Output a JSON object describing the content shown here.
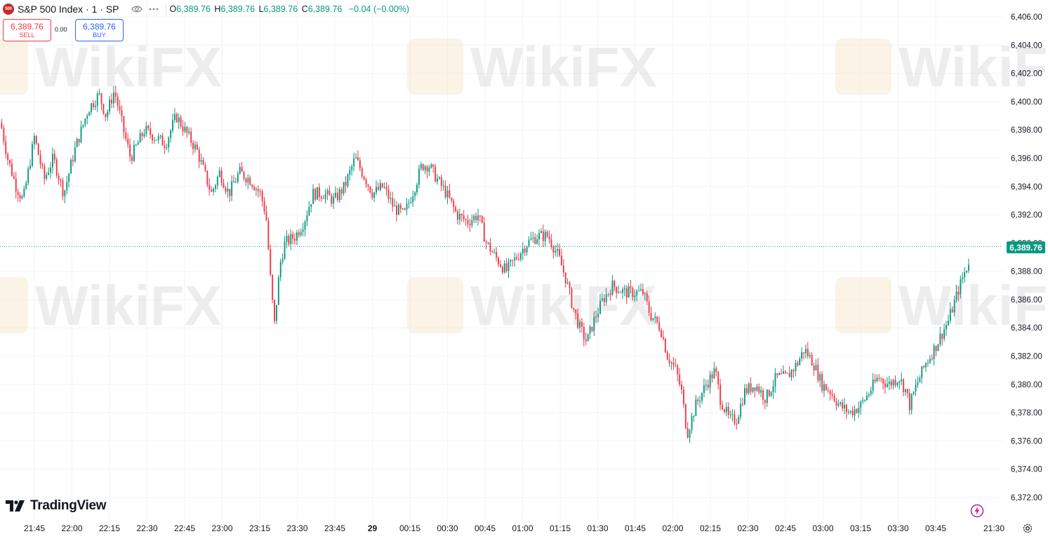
{
  "symbol": {
    "logo_text": "500",
    "title": "S&P 500 Index · 1 · SP"
  },
  "ohlc": {
    "open_label": "O",
    "open": "6,389.76",
    "high_label": "H",
    "high": "6,389.76",
    "low_label": "L",
    "low": "6,389.76",
    "close_label": "C",
    "close": "6,389.76",
    "change": "−0.04 (−0.00%)"
  },
  "trade": {
    "sell_price": "6,389.76",
    "sell_label": "SELL",
    "spread": "0.00",
    "buy_price": "6,389.76",
    "buy_label": "BUY"
  },
  "brand": {
    "name": "TradingView"
  },
  "watermark": {
    "text": "WikiFX"
  },
  "last_price": "6,389.76",
  "colors": {
    "up": "#089981",
    "down": "#f23645",
    "grid": "#f0f3fa",
    "text": "#131722"
  },
  "icons": [
    "symbol-logo-icon",
    "eye-icon",
    "more-dots-icon",
    "flash-icon",
    "gear-icon",
    "tradingview-logo-icon"
  ],
  "chart_data": {
    "type": "candlestick",
    "interval": "1 minute",
    "yaxis_ticks": [
      6372,
      6374,
      6376,
      6378,
      6380,
      6382,
      6384,
      6386,
      6388,
      6390,
      6392,
      6394,
      6396,
      6398,
      6400,
      6402,
      6404,
      6406
    ],
    "yaxis_tick_labels": [
      "6,372.00",
      "6,374.00",
      "6,376.00",
      "6,378.00",
      "6,380.00",
      "6,382.00",
      "6,384.00",
      "6,386.00",
      "6,388.00",
      "6,390.00",
      "6,392.00",
      "6,394.00",
      "6,396.00",
      "6,398.00",
      "6,400.00",
      "6,402.00",
      "6,404.00",
      "6,406.00"
    ],
    "ylim": [
      6371,
      6407
    ],
    "xaxis_tick_labels": [
      "21:45",
      "22:00",
      "22:15",
      "22:30",
      "22:45",
      "23:00",
      "23:15",
      "23:30",
      "23:45",
      "29",
      "00:15",
      "00:30",
      "00:45",
      "01:00",
      "01:15",
      "01:30",
      "01:45",
      "02:00",
      "02:15",
      "02:30",
      "02:45",
      "03:00",
      "03:15",
      "03:30",
      "03:45",
      "21:30"
    ],
    "last_price": 6389.76,
    "price_path": [
      [
        0,
        6398.5
      ],
      [
        10,
        6396.0
      ],
      [
        22,
        6394.0
      ],
      [
        32,
        6393.0
      ],
      [
        48,
        6397.5
      ],
      [
        62,
        6394.5
      ],
      [
        75,
        6396.0
      ],
      [
        90,
        6393.5
      ],
      [
        105,
        6396.5
      ],
      [
        125,
        6399.5
      ],
      [
        140,
        6400.5
      ],
      [
        150,
        6399.0
      ],
      [
        162,
        6400.8
      ],
      [
        175,
        6398.0
      ],
      [
        185,
        6396.0
      ],
      [
        205,
        6398.0
      ],
      [
        220,
        6397.5
      ],
      [
        235,
        6397.0
      ],
      [
        250,
        6399.0
      ],
      [
        262,
        6398.0
      ],
      [
        280,
        6396.5
      ],
      [
        290,
        6395.0
      ],
      [
        300,
        6393.5
      ],
      [
        312,
        6395.0
      ],
      [
        325,
        6393.5
      ],
      [
        340,
        6395.0
      ],
      [
        355,
        6394.5
      ],
      [
        370,
        6393.5
      ],
      [
        378,
        6392.0
      ],
      [
        385,
        6387.0
      ],
      [
        390,
        6384.2
      ],
      [
        398,
        6388.5
      ],
      [
        405,
        6390.0
      ],
      [
        420,
        6390.5
      ],
      [
        432,
        6391.5
      ],
      [
        445,
        6393.5
      ],
      [
        460,
        6393.5
      ],
      [
        475,
        6393.0
      ],
      [
        490,
        6394.0
      ],
      [
        505,
        6396.0
      ],
      [
        515,
        6395.0
      ],
      [
        530,
        6393.5
      ],
      [
        545,
        6394.0
      ],
      [
        560,
        6392.5
      ],
      [
        575,
        6392.0
      ],
      [
        590,
        6394.0
      ],
      [
        600,
        6395.5
      ],
      [
        610,
        6395.5
      ],
      [
        622,
        6394.5
      ],
      [
        635,
        6393.5
      ],
      [
        650,
        6392.0
      ],
      [
        665,
        6391.5
      ],
      [
        680,
        6392.0
      ],
      [
        692,
        6390.0
      ],
      [
        705,
        6389.0
      ],
      [
        720,
        6388.0
      ],
      [
        735,
        6389.0
      ],
      [
        750,
        6390.0
      ],
      [
        765,
        6390.5
      ],
      [
        780,
        6390.5
      ],
      [
        795,
        6389.0
      ],
      [
        805,
        6387.5
      ],
      [
        815,
        6385.5
      ],
      [
        825,
        6384.0
      ],
      [
        835,
        6383.0
      ],
      [
        845,
        6384.5
      ],
      [
        858,
        6386.0
      ],
      [
        872,
        6387.0
      ],
      [
        888,
        6386.5
      ],
      [
        902,
        6386.5
      ],
      [
        915,
        6386.5
      ],
      [
        925,
        6385.0
      ],
      [
        940,
        6384.0
      ],
      [
        950,
        6382.0
      ],
      [
        962,
        6381.0
      ],
      [
        970,
        6379.5
      ],
      [
        978,
        6376.5
      ],
      [
        990,
        6378.5
      ],
      [
        1005,
        6380.0
      ],
      [
        1018,
        6381.0
      ],
      [
        1025,
        6379.0
      ],
      [
        1038,
        6377.5
      ],
      [
        1048,
        6377.5
      ],
      [
        1060,
        6379.5
      ],
      [
        1075,
        6380.0
      ],
      [
        1090,
        6379.0
      ],
      [
        1105,
        6380.5
      ],
      [
        1120,
        6380.5
      ],
      [
        1135,
        6381.5
      ],
      [
        1145,
        6382.5
      ],
      [
        1158,
        6381.5
      ],
      [
        1170,
        6380.0
      ],
      [
        1182,
        6379.5
      ],
      [
        1195,
        6378.5
      ],
      [
        1210,
        6378.0
      ],
      [
        1225,
        6378.5
      ],
      [
        1238,
        6379.5
      ],
      [
        1250,
        6380.5
      ],
      [
        1265,
        6380.0
      ],
      [
        1280,
        6380.5
      ],
      [
        1290,
        6379.5
      ],
      [
        1295,
        6378.5
      ],
      [
        1305,
        6380.0
      ],
      [
        1318,
        6381.5
      ],
      [
        1330,
        6382.5
      ],
      [
        1340,
        6383.5
      ],
      [
        1350,
        6384.5
      ],
      [
        1360,
        6386.0
      ],
      [
        1370,
        6387.5
      ],
      [
        1378,
        6388.5
      ],
      [
        1383,
        6389.76
      ]
    ]
  }
}
